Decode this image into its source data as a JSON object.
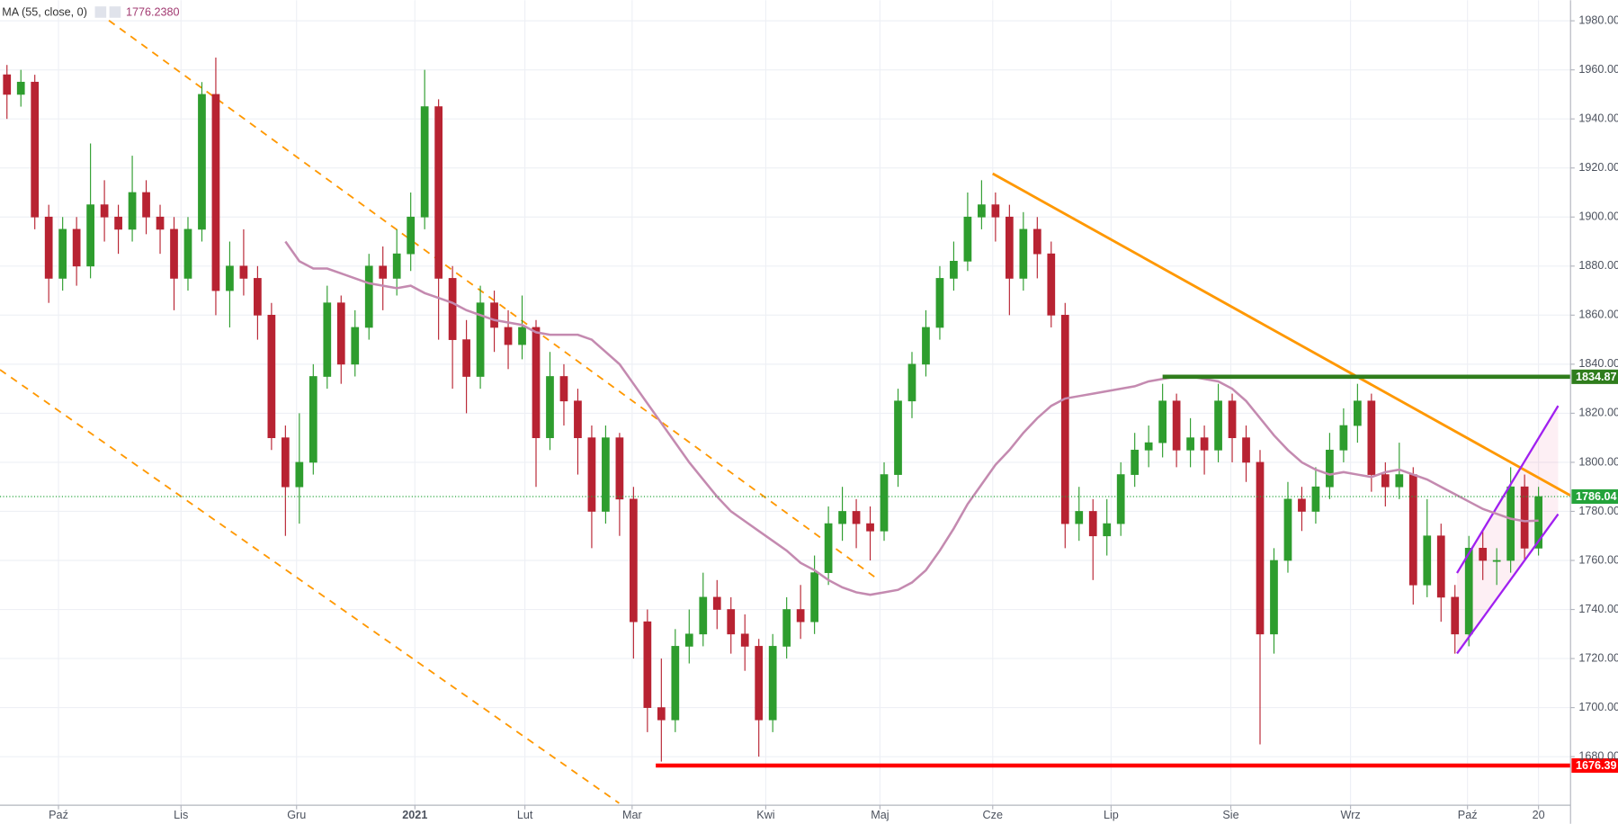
{
  "chart_data": {
    "type": "candlestick",
    "xlim": [
      -0.5,
      112.3
    ],
    "xticks": [
      {
        "value": 3.7,
        "label": "Paź"
      },
      {
        "value": 12.5,
        "label": "Lis"
      },
      {
        "value": 20.8,
        "label": "Gru"
      },
      {
        "value": 29.3,
        "label": "2021"
      },
      {
        "value": 37.2,
        "label": "Lut"
      },
      {
        "value": 44.9,
        "label": "Mar"
      },
      {
        "value": 54.5,
        "label": "Kwi"
      },
      {
        "value": 62.7,
        "label": "Maj"
      },
      {
        "value": 70.8,
        "label": "Cze"
      },
      {
        "value": 79.3,
        "label": "Lip"
      },
      {
        "value": 87.9,
        "label": "Sie"
      },
      {
        "value": 96.5,
        "label": "Wrz"
      },
      {
        "value": 104.9,
        "label": "Paź"
      },
      {
        "value": 110.0,
        "label": "20"
      }
    ],
    "ylim": [
      1660.2,
      1988.4
    ],
    "yticks": [
      {
        "value": 1680,
        "label": "1680.00"
      },
      {
        "value": 1700,
        "label": "1700.00"
      },
      {
        "value": 1720,
        "label": "1720.00"
      },
      {
        "value": 1740,
        "label": "1740.00"
      },
      {
        "value": 1760,
        "label": "1760.00"
      },
      {
        "value": 1780,
        "label": "1780.00"
      },
      {
        "value": 1800,
        "label": "1800.00"
      },
      {
        "value": 1820,
        "label": "1820.00"
      },
      {
        "value": 1840,
        "label": "1840.00"
      },
      {
        "value": 1860,
        "label": "1860.00"
      },
      {
        "value": 1880,
        "label": "1880.00"
      },
      {
        "value": 1900,
        "label": "1900.00"
      },
      {
        "value": 1920,
        "label": "1920.00"
      },
      {
        "value": 1940,
        "label": "1940.00"
      },
      {
        "value": 1960,
        "label": "1960.00"
      },
      {
        "value": 1980,
        "label": "1980.00"
      }
    ],
    "grid": true,
    "up_color": "#2e9d2e",
    "down_color": "#b82332",
    "candles": {
      "open": [
        1958,
        1950,
        1955,
        1900,
        1875,
        1895,
        1880,
        1905,
        1900,
        1895,
        1910,
        1900,
        1895,
        1875,
        1895,
        1950,
        1870,
        1880,
        1875,
        1860,
        1810,
        1790,
        1800,
        1835,
        1865,
        1840,
        1855,
        1880,
        1875,
        1885,
        1900,
        1945,
        1875,
        1850,
        1835,
        1865,
        1855,
        1848,
        1855,
        1810,
        1835,
        1825,
        1810,
        1780,
        1810,
        1785,
        1735,
        1700,
        1695,
        1725,
        1730,
        1745,
        1740,
        1730,
        1725,
        1695,
        1725,
        1740,
        1735,
        1755,
        1775,
        1780,
        1775,
        1772,
        1795,
        1825,
        1840,
        1855,
        1875,
        1882,
        1900,
        1905,
        1900,
        1875,
        1895,
        1885,
        1860,
        1775,
        1780,
        1770,
        1775,
        1795,
        1805,
        1808,
        1825,
        1805,
        1810,
        1805,
        1825,
        1810,
        1800,
        1730,
        1760,
        1785,
        1780,
        1790,
        1805,
        1815,
        1825,
        1795,
        1790,
        1795,
        1750,
        1770,
        1745,
        1730,
        1765,
        1760,
        1760,
        1790,
        1765
      ],
      "high": [
        1962,
        1960,
        1958,
        1905,
        1900,
        1900,
        1930,
        1915,
        1905,
        1925,
        1915,
        1905,
        1900,
        1900,
        1955,
        1965,
        1890,
        1895,
        1880,
        1865,
        1815,
        1820,
        1840,
        1872,
        1868,
        1862,
        1885,
        1888,
        1895,
        1910,
        1960,
        1948,
        1880,
        1858,
        1872,
        1870,
        1862,
        1868,
        1858,
        1845,
        1840,
        1830,
        1815,
        1815,
        1812,
        1790,
        1740,
        1720,
        1732,
        1740,
        1755,
        1752,
        1745,
        1738,
        1728,
        1730,
        1745,
        1750,
        1762,
        1782,
        1790,
        1785,
        1782,
        1800,
        1830,
        1845,
        1862,
        1880,
        1890,
        1910,
        1915,
        1910,
        1905,
        1902,
        1900,
        1890,
        1865,
        1790,
        1785,
        1785,
        1800,
        1812,
        1815,
        1832,
        1828,
        1818,
        1815,
        1832,
        1828,
        1815,
        1805,
        1765,
        1792,
        1790,
        1798,
        1812,
        1822,
        1832,
        1828,
        1800,
        1808,
        1798,
        1785,
        1775,
        1750,
        1770,
        1772,
        1765,
        1798,
        1795,
        1790
      ],
      "low": [
        1940,
        1945,
        1895,
        1865,
        1870,
        1872,
        1875,
        1890,
        1885,
        1890,
        1893,
        1885,
        1862,
        1870,
        1890,
        1860,
        1855,
        1868,
        1850,
        1805,
        1770,
        1775,
        1795,
        1830,
        1832,
        1835,
        1850,
        1862,
        1868,
        1878,
        1895,
        1850,
        1830,
        1820,
        1830,
        1845,
        1838,
        1842,
        1790,
        1805,
        1815,
        1795,
        1765,
        1775,
        1770,
        1720,
        1690,
        1678,
        1690,
        1718,
        1725,
        1732,
        1722,
        1715,
        1680,
        1690,
        1720,
        1728,
        1730,
        1750,
        1768,
        1765,
        1760,
        1768,
        1790,
        1818,
        1835,
        1850,
        1870,
        1878,
        1895,
        1890,
        1860,
        1870,
        1875,
        1855,
        1765,
        1768,
        1752,
        1762,
        1770,
        1790,
        1798,
        1802,
        1798,
        1798,
        1795,
        1800,
        1800,
        1792,
        1685,
        1722,
        1755,
        1772,
        1775,
        1785,
        1800,
        1808,
        1788,
        1782,
        1785,
        1742,
        1745,
        1735,
        1722,
        1725,
        1752,
        1750,
        1755,
        1760,
        1762
      ],
      "close": [
        1950,
        1955,
        1900,
        1875,
        1895,
        1880,
        1905,
        1900,
        1895,
        1910,
        1900,
        1895,
        1875,
        1895,
        1950,
        1870,
        1880,
        1875,
        1860,
        1810,
        1790,
        1800,
        1835,
        1865,
        1840,
        1855,
        1880,
        1875,
        1885,
        1900,
        1945,
        1875,
        1850,
        1835,
        1865,
        1855,
        1848,
        1855,
        1810,
        1835,
        1825,
        1810,
        1780,
        1810,
        1785,
        1735,
        1700,
        1695,
        1725,
        1730,
        1745,
        1740,
        1730,
        1725,
        1695,
        1725,
        1740,
        1735,
        1755,
        1775,
        1780,
        1775,
        1772,
        1795,
        1825,
        1840,
        1855,
        1875,
        1882,
        1900,
        1905,
        1900,
        1875,
        1895,
        1885,
        1860,
        1775,
        1780,
        1770,
        1775,
        1795,
        1805,
        1808,
        1825,
        1805,
        1810,
        1805,
        1825,
        1810,
        1800,
        1730,
        1760,
        1785,
        1780,
        1790,
        1805,
        1815,
        1825,
        1795,
        1790,
        1795,
        1750,
        1770,
        1745,
        1730,
        1765,
        1760,
        1760,
        1790,
        1765,
        1786.04
      ]
    },
    "ma": {
      "name": "MA (55, close, 0)",
      "color": "#c48ab0",
      "last_label": "1776.2380",
      "values": [
        null,
        null,
        null,
        null,
        null,
        null,
        null,
        null,
        null,
        null,
        null,
        null,
        null,
        null,
        null,
        null,
        null,
        null,
        null,
        null,
        1890,
        1882,
        1879,
        1879,
        1877,
        1875,
        1873,
        1872,
        1871,
        1872,
        1869,
        1867,
        1865,
        1862,
        1860,
        1858,
        1857,
        1856,
        1853,
        1852,
        1852,
        1852,
        1850,
        1845,
        1840,
        1832,
        1824,
        1816,
        1808,
        1800,
        1793,
        1786,
        1780,
        1776,
        1772,
        1768,
        1764,
        1759,
        1756,
        1752,
        1749,
        1747,
        1746,
        1747,
        1748,
        1751,
        1756,
        1764,
        1773,
        1783,
        1791,
        1799,
        1805,
        1812,
        1818,
        1823,
        1826,
        1827,
        1828,
        1829,
        1830,
        1831,
        1833,
        1834,
        1835,
        1835,
        1834,
        1833,
        1830,
        1825,
        1818,
        1811,
        1805,
        1800,
        1797,
        1795,
        1796,
        1795,
        1794,
        1796,
        1797,
        1795,
        1793,
        1790,
        1787,
        1784,
        1781,
        1779,
        1777,
        1776,
        1776.238
      ]
    },
    "levels": [
      {
        "value": 1834.87,
        "color": "#2f7d1c",
        "x_start": 83.0
      },
      {
        "value": 1676.39,
        "color": "#ff0000",
        "x_start": 46.6
      }
    ],
    "last_price": {
      "value": 1786.04,
      "color": "#24a33a"
    }
  }
}
